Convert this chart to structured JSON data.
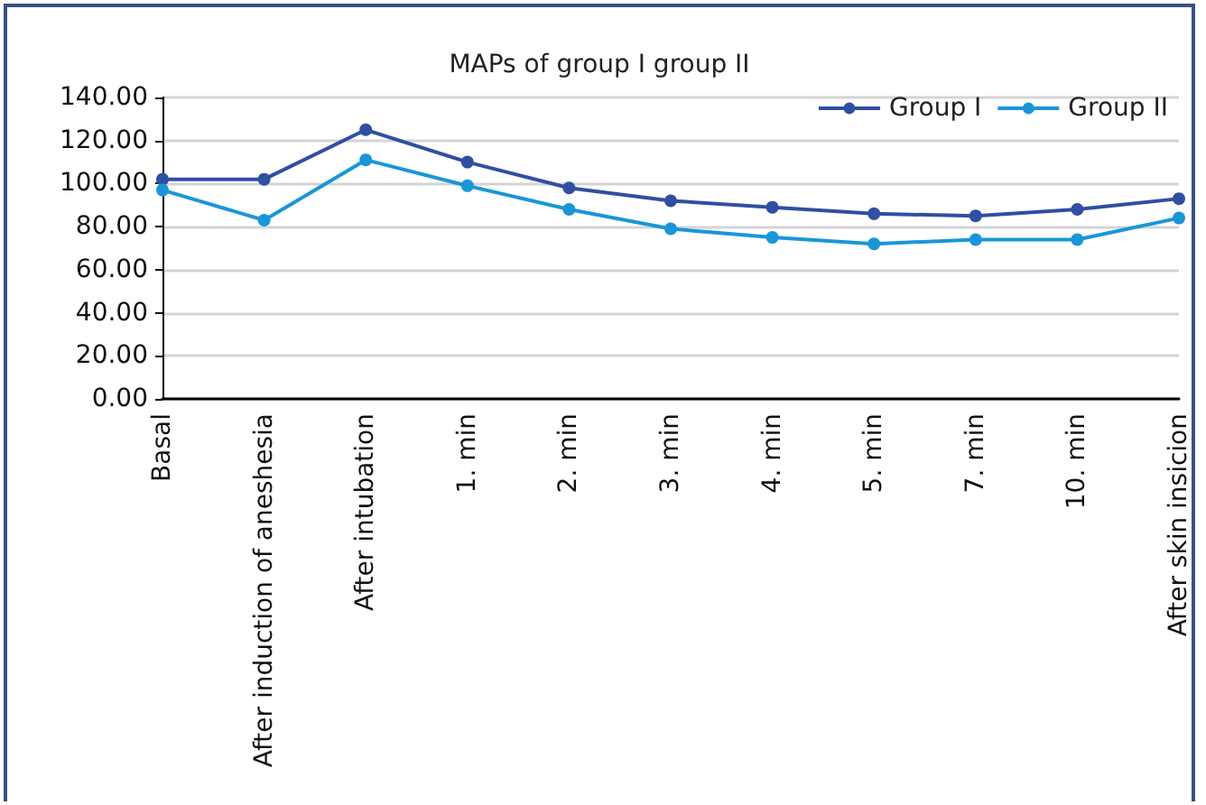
{
  "chart_data": {
    "type": "line",
    "title": "MAPs of group I group II",
    "categories": [
      "Basal",
      "After induction of aneshesia",
      "After intubation",
      "1. min",
      "2. min",
      "3. min",
      "4. min",
      "5. min",
      "7. min",
      "10. min",
      "After skin insicion"
    ],
    "series": [
      {
        "name": "Group I",
        "color": "#2f4fa2",
        "values": [
          102,
          102,
          125,
          110,
          98,
          92,
          89,
          86,
          85,
          88,
          93
        ]
      },
      {
        "name": "Group II",
        "color": "#1a96d8",
        "values": [
          97,
          83,
          111,
          99,
          88,
          79,
          75,
          72,
          74,
          74,
          84
        ]
      }
    ],
    "ylim": [
      0,
      140
    ],
    "yticks": [
      {
        "value": 0,
        "label": "0.00"
      },
      {
        "value": 20,
        "label": "20.00"
      },
      {
        "value": 40,
        "label": "40.00"
      },
      {
        "value": 60,
        "label": "60.00"
      },
      {
        "value": 80,
        "label": "80.00"
      },
      {
        "value": 100,
        "label": "100.00"
      },
      {
        "value": 120,
        "label": "120.00"
      },
      {
        "value": 140,
        "label": "140.00"
      }
    ],
    "grid": "y",
    "legend": "top right",
    "marker": "circle",
    "line_style": "solid"
  }
}
